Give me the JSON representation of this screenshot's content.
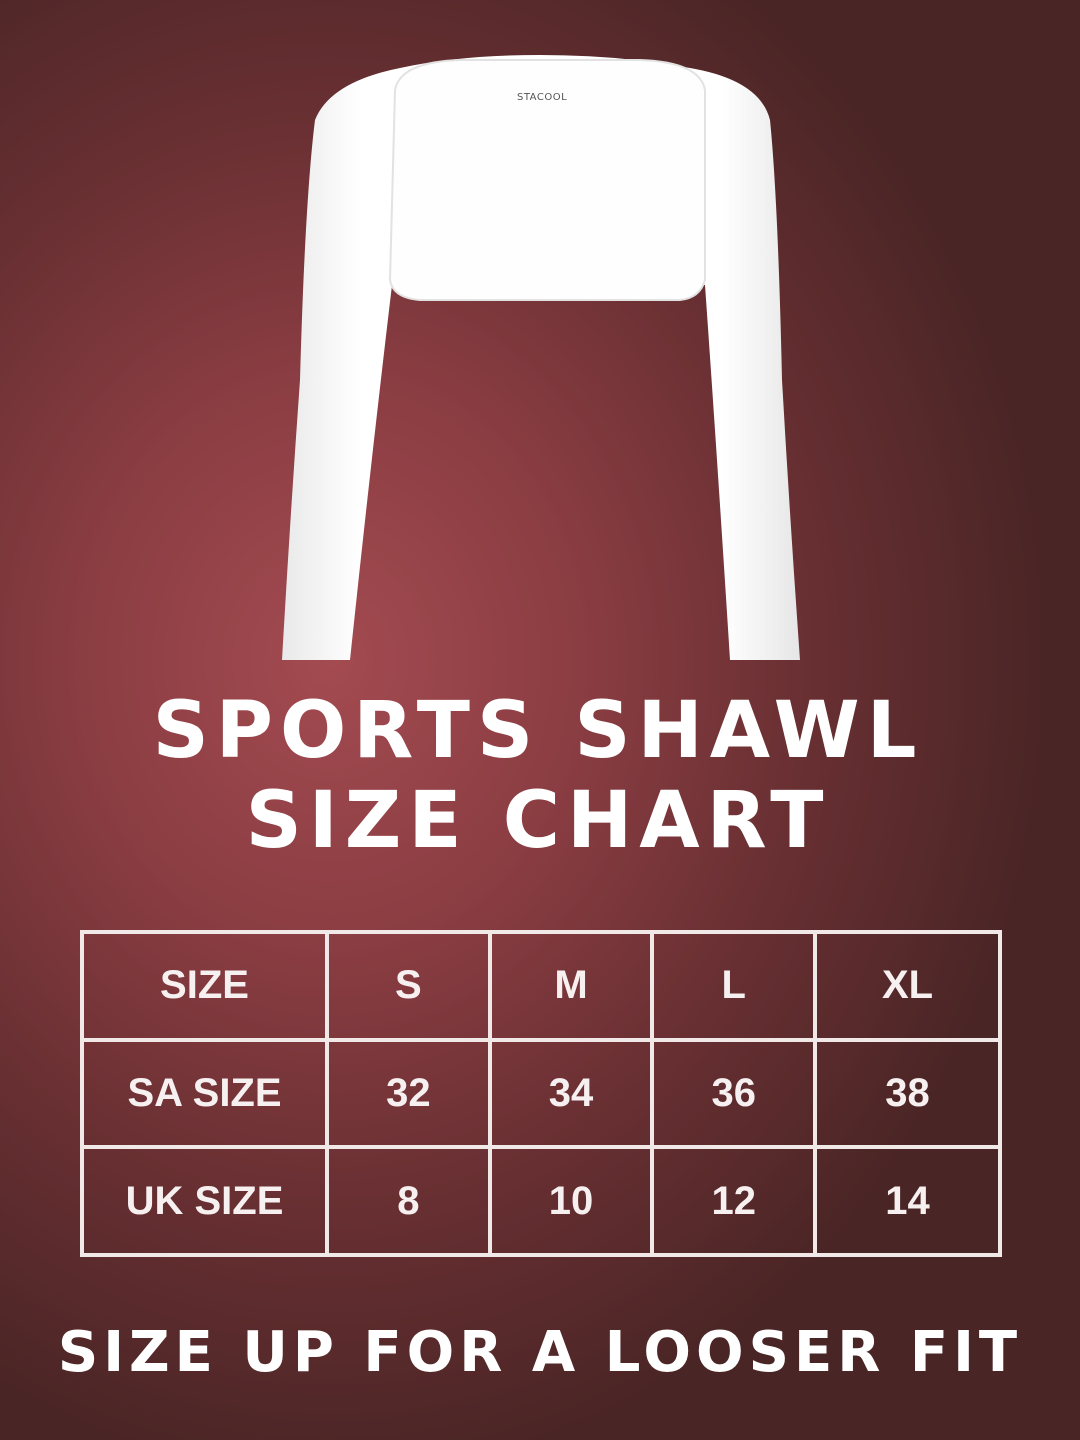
{
  "logo": {
    "text": "STACOOL"
  },
  "title": {
    "line1": "SPORTS SHAWL",
    "line2": "SIZE CHART"
  },
  "table": {
    "headers": [
      "SIZE",
      "S",
      "M",
      "L",
      "XL"
    ],
    "rows": [
      [
        "SA SIZE",
        "32",
        "34",
        "36",
        "38"
      ],
      [
        "UK SIZE",
        "8",
        "10",
        "12",
        "14"
      ]
    ]
  },
  "footer": "SIZE UP FOR A LOOSER FIT",
  "colors": {
    "background": "#8a3d42",
    "garment": "#ffffff",
    "text": "#ffffff"
  }
}
